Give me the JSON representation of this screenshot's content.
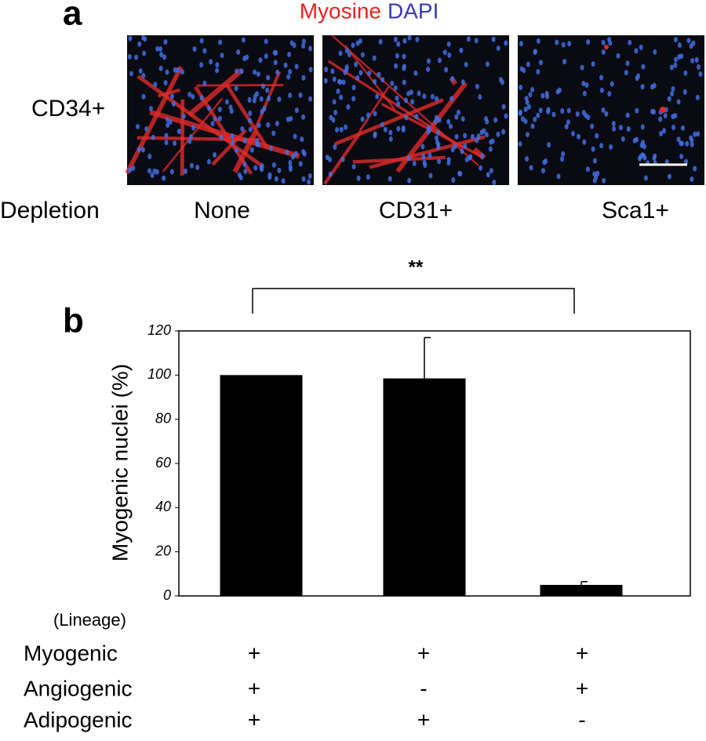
{
  "panel_a": {
    "label": "a",
    "stain_labels": [
      "Myosine",
      "DAPI"
    ],
    "stain_colors": [
      "#e8231f",
      "#3a3ab8"
    ],
    "row_label": "CD34+",
    "depletion_label": "Depletion",
    "conditions": [
      "None",
      "CD31+",
      "Sca1+"
    ]
  },
  "chart_data": {
    "type": "bar",
    "panel_label": "b",
    "y_label": "Myogenic nuclei (%)",
    "values": [
      100,
      98.5,
      5
    ],
    "errors": [
      null,
      18.5,
      1.5
    ],
    "color": "#000000",
    "ylim": [
      0,
      120
    ],
    "yticks": [
      0,
      20,
      40,
      60,
      80,
      100,
      120
    ],
    "annotation": "**",
    "lineage": {
      "title": "(Lineage)",
      "rows": [
        {
          "name": "Myogenic",
          "marks": [
            "+",
            "+",
            "+"
          ]
        },
        {
          "name": "Angiogenic",
          "marks": [
            "+",
            "-",
            "+"
          ]
        },
        {
          "name": "Adipogenic",
          "marks": [
            "+",
            "+",
            "-"
          ]
        }
      ]
    }
  }
}
